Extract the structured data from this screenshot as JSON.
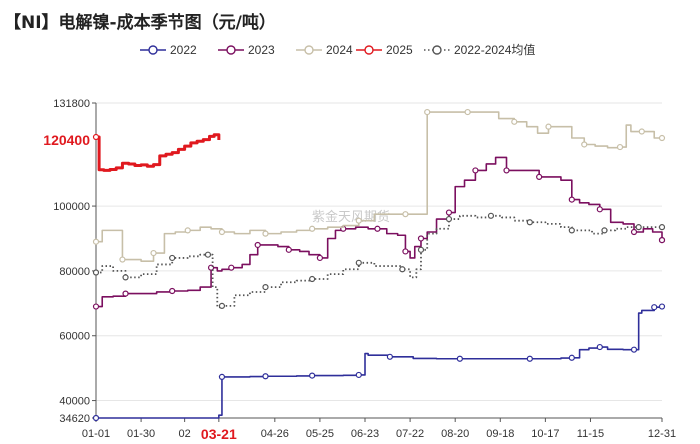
{
  "chart_data": {
    "type": "line",
    "title": "【NI】电解镍-成本季节图（元/吨）",
    "watermark": "紫金天风期货",
    "x_tick_labels": [
      "01-01",
      "01-30",
      "02",
      "03-21",
      "04-26",
      "05-25",
      "06-23",
      "07-22",
      "08-20",
      "09-18",
      "10-17",
      "11-15",
      "12-31"
    ],
    "x_tick_positions": [
      1,
      30,
      58,
      80,
      116,
      145,
      174,
      203,
      232,
      261,
      290,
      319,
      365
    ],
    "highlight_x_label": "03-21",
    "xlim": [
      1,
      365
    ],
    "y_tick_labels": [
      "131800",
      "100000",
      "80000",
      "60000",
      "40000",
      "34620"
    ],
    "y_tick_values": [
      131800,
      100000,
      80000,
      60000,
      40000,
      34620
    ],
    "ylim": [
      34620,
      131800
    ],
    "highlight_y_label": "120400",
    "highlight_y_value": 120400,
    "series": [
      {
        "name": "2022",
        "color": "#2f2f9a",
        "style": "solid",
        "x": [
          1,
          75,
          80,
          82,
          90,
          100,
          110,
          120,
          130,
          140,
          150,
          160,
          170,
          174,
          176,
          190,
          205,
          220,
          235,
          250,
          265,
          280,
          290,
          300,
          307,
          312,
          318,
          325,
          330,
          340,
          347,
          350,
          352,
          360,
          365
        ],
        "y": [
          34620,
          34620,
          35500,
          47300,
          47300,
          47400,
          47500,
          47500,
          47600,
          47700,
          47700,
          47800,
          47900,
          54500,
          54000,
          53500,
          53000,
          52900,
          52900,
          52900,
          52900,
          52900,
          52900,
          53100,
          53200,
          55700,
          56200,
          56500,
          55800,
          55700,
          55700,
          67000,
          67800,
          68800,
          69000
        ]
      },
      {
        "name": "2023",
        "color": "#7b0f5f",
        "style": "solid",
        "x": [
          1,
          5,
          12,
          20,
          30,
          40,
          50,
          60,
          68,
          75,
          79,
          82,
          88,
          95,
          100,
          105,
          112,
          118,
          125,
          132,
          138,
          145,
          150,
          155,
          160,
          168,
          176,
          182,
          188,
          195,
          200,
          203,
          206,
          210,
          214,
          220,
          228,
          232,
          238,
          245,
          252,
          258,
          265,
          272,
          280,
          286,
          292,
          300,
          307,
          312,
          318,
          325,
          332,
          340,
          347,
          353,
          359,
          365
        ],
        "y": [
          69000,
          72000,
          72200,
          73000,
          73000,
          73500,
          73800,
          74000,
          75000,
          81000,
          80000,
          80500,
          81000,
          82000,
          85000,
          88000,
          88000,
          87500,
          86500,
          86000,
          85000,
          84000,
          90000,
          92500,
          93000,
          93500,
          93000,
          93000,
          91500,
          91000,
          86000,
          84000,
          87500,
          90000,
          92000,
          96000,
          98000,
          106000,
          108000,
          111000,
          113000,
          115000,
          111000,
          111000,
          111000,
          109000,
          109000,
          108000,
          102000,
          101000,
          100500,
          99000,
          95000,
          94500,
          92000,
          93000,
          92000,
          89500
        ]
      },
      {
        "name": "2024",
        "color": "#c7bfa8",
        "style": "solid",
        "x": [
          1,
          5,
          12,
          18,
          25,
          30,
          38,
          45,
          52,
          60,
          68,
          75,
          82,
          90,
          100,
          110,
          120,
          130,
          140,
          150,
          160,
          170,
          180,
          190,
          200,
          205,
          210,
          214,
          220,
          230,
          240,
          250,
          260,
          270,
          278,
          285,
          292,
          300,
          307,
          315,
          322,
          330,
          338,
          342,
          345,
          352,
          360,
          365
        ],
        "y": [
          89000,
          92500,
          92500,
          83500,
          83500,
          83000,
          85500,
          91500,
          92000,
          92500,
          93500,
          93000,
          92000,
          91500,
          92500,
          91500,
          92000,
          92500,
          93000,
          93500,
          94000,
          95500,
          97500,
          97500,
          97500,
          97500,
          97500,
          129000,
          129000,
          129000,
          129000,
          129000,
          127000,
          126000,
          124500,
          122500,
          124500,
          124500,
          121000,
          119000,
          118500,
          118000,
          118200,
          125000,
          123000,
          123000,
          121000,
          121000
        ]
      },
      {
        "name": "2025",
        "color": "#e0191f",
        "style": "solid",
        "x": [
          1,
          3,
          6,
          10,
          14,
          18,
          22,
          26,
          30,
          34,
          38,
          42,
          46,
          50,
          54,
          58,
          62,
          66,
          70,
          74,
          77,
          80
        ],
        "y": [
          121300,
          111200,
          111000,
          111300,
          111800,
          113200,
          113000,
          112500,
          112700,
          112300,
          112800,
          115500,
          116000,
          116500,
          117500,
          118500,
          119500,
          120000,
          120500,
          121500,
          122000,
          120400
        ]
      },
      {
        "name": "2022-2024均值",
        "color": "#555555",
        "style": "dotted",
        "x": [
          1,
          5,
          12,
          20,
          30,
          40,
          50,
          60,
          68,
          73,
          76,
          79,
          82,
          90,
          100,
          110,
          120,
          130,
          140,
          150,
          160,
          170,
          180,
          190,
          198,
          203,
          207,
          210,
          214,
          220,
          228,
          235,
          245,
          255,
          262,
          270,
          280,
          290,
          300,
          307,
          312,
          320,
          328,
          335,
          342,
          350,
          358,
          365
        ],
        "y": [
          79500,
          81500,
          80000,
          78000,
          79000,
          82000,
          84000,
          84500,
          85000,
          85000,
          75000,
          68800,
          69200,
          72500,
          73500,
          75000,
          76500,
          77000,
          77500,
          79000,
          80500,
          82500,
          81500,
          81500,
          80500,
          78000,
          80500,
          86500,
          91500,
          93000,
          96000,
          97000,
          96500,
          97000,
          96500,
          95500,
          95000,
          94500,
          93500,
          92500,
          92500,
          91500,
          92500,
          93000,
          93500,
          93500,
          93500,
          93500
        ]
      }
    ]
  }
}
